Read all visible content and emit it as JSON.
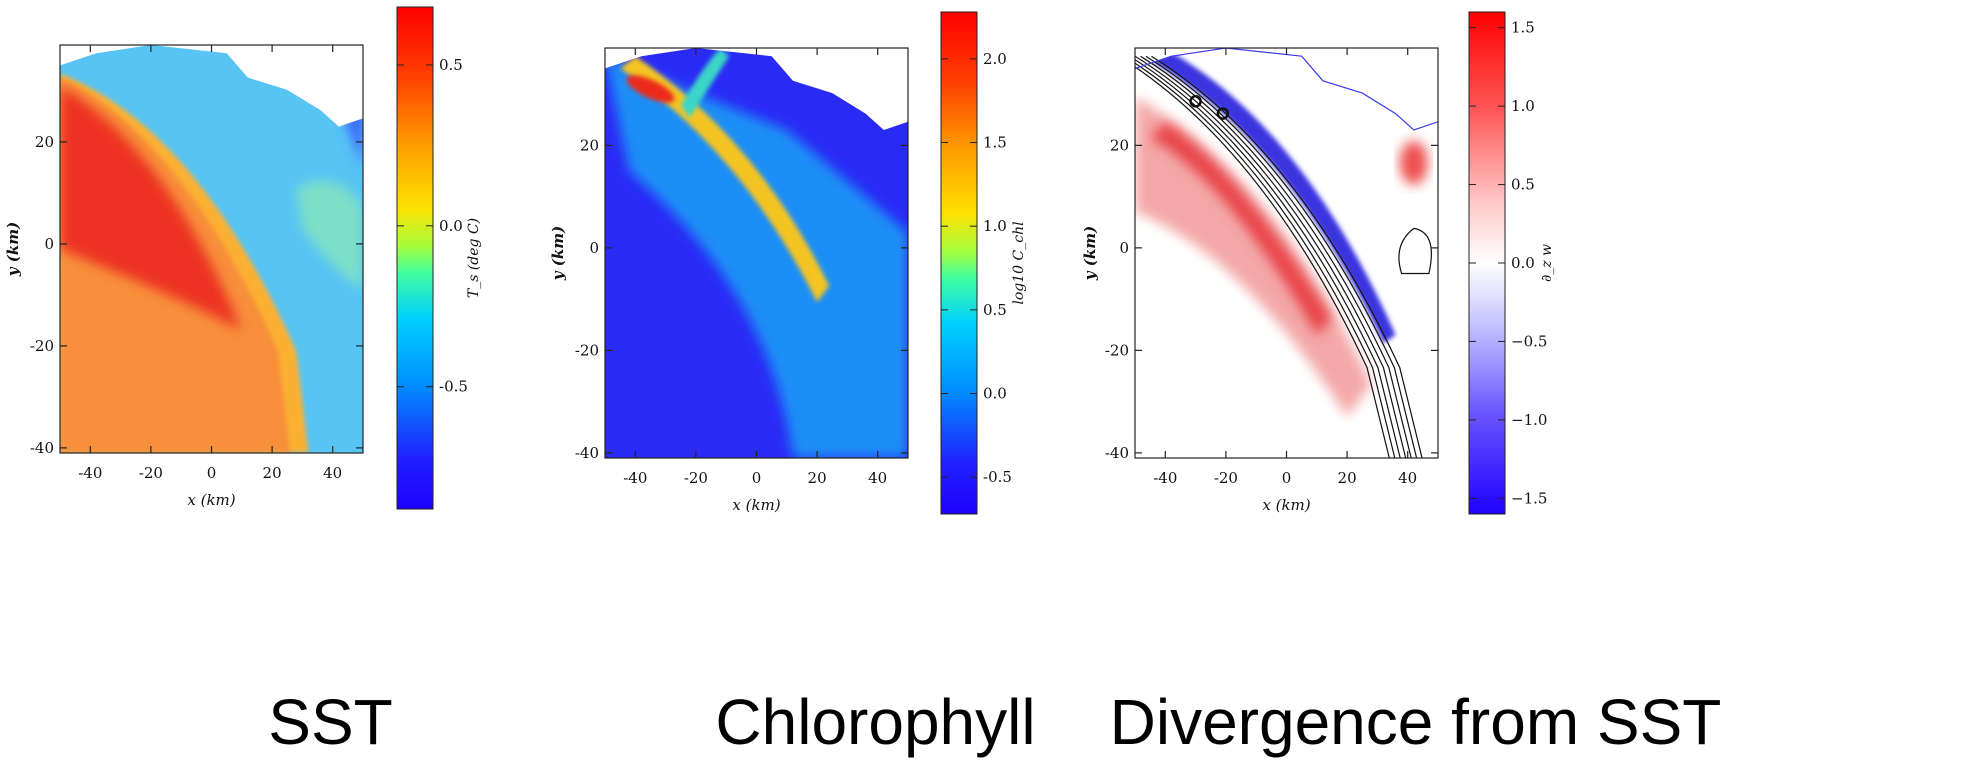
{
  "chart_data": [
    {
      "type": "heatmap",
      "caption": "SST",
      "xlabel": "x (km)",
      "ylabel": "y (km)",
      "xlim": [
        -50,
        50
      ],
      "ylim": [
        -41,
        39
      ],
      "xticks": [
        -40,
        -20,
        0,
        20,
        40
      ],
      "yticks": [
        -40,
        -20,
        0,
        20
      ],
      "colorbar": {
        "label": "T_s (deg C)",
        "range": [
          -0.88,
          0.68
        ],
        "ticks": [
          0.5,
          0.0,
          -0.5
        ],
        "ticklabels": [
          "0.5",
          "0.0",
          "-0.5"
        ],
        "colormap": "jet"
      },
      "colors": {
        "warm_core": "#ee2a1a",
        "warm_edge": "#fb9a22",
        "cool_water": "#4cc1ff",
        "coldest": "#3a5cff"
      }
    },
    {
      "type": "heatmap",
      "caption": "Chlorophyll",
      "xlabel": "x (km)",
      "ylabel": "y (km)",
      "xlim": [
        -50,
        50
      ],
      "ylim": [
        -41,
        39
      ],
      "xticks": [
        -40,
        -20,
        0,
        20,
        40
      ],
      "yticks": [
        -40,
        -20,
        0,
        20
      ],
      "colorbar": {
        "label": "log10 C_chl",
        "range": [
          -0.72,
          2.28
        ],
        "ticks": [
          2.0,
          1.5,
          1.0,
          0.5,
          0.0,
          -0.5
        ],
        "ticklabels": [
          "2.0",
          "1.5",
          "1.0",
          "0.5",
          "0.0",
          "-0.5"
        ],
        "colormap": "jet"
      },
      "colors": {
        "background": "#2c2cf6",
        "filament": "#f6c020",
        "filament_core": "#ee2a1a",
        "shelf": "#1e9af7"
      }
    },
    {
      "type": "heatmap",
      "caption": "Divergence from SST",
      "xlabel": "x (km)",
      "ylabel": "y (km)",
      "xlim": [
        -50,
        50
      ],
      "ylim": [
        -41,
        39
      ],
      "xticks": [
        -40,
        -20,
        0,
        20,
        40
      ],
      "yticks": [
        -40,
        -20,
        0,
        20
      ],
      "colorbar": {
        "label": "∂_z w",
        "range": [
          -1.6,
          1.6
        ],
        "ticks": [
          1.5,
          1.0,
          0.5,
          0.0,
          -0.5,
          -1.0,
          -1.5
        ],
        "ticklabels": [
          "1.5",
          "1.0",
          "0.5",
          "0.0",
          "−0.5",
          "−1.0",
          "−1.5"
        ],
        "colormap": "bwr"
      },
      "colors": {
        "positive": "#e8444a",
        "negative": "#3b36e0",
        "contour": "#111111"
      }
    }
  ]
}
